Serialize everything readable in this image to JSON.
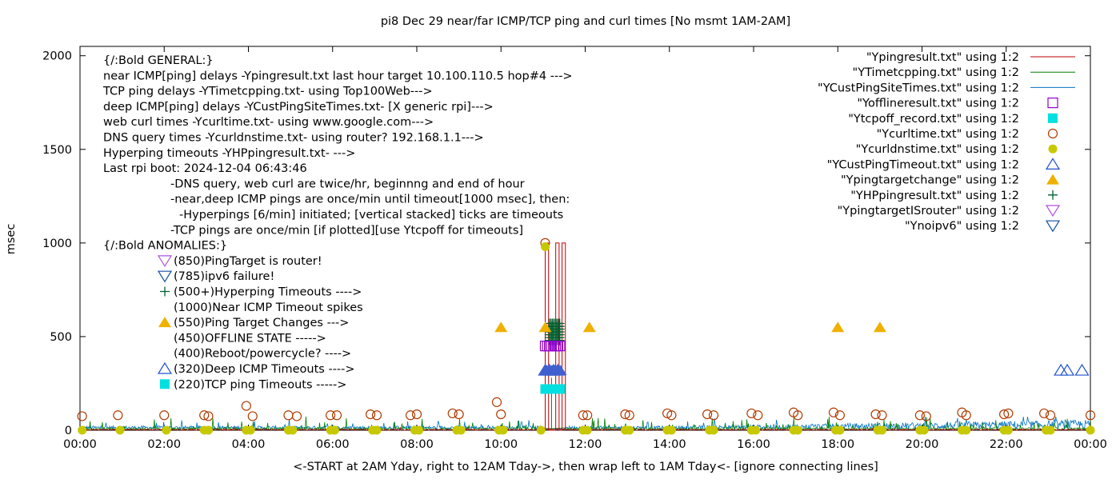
{
  "chart_data": {
    "type": "line",
    "title": "pi8 Dec 29  near/far ICMP/TCP ping and curl times [No msmt 1AM-2AM]",
    "xlabel": "<-START at 2AM Yday, right to 12AM Tday->, then wrap left to 1AM Tday<- [ignore connecting lines]",
    "ylabel": "msec",
    "xlim": [
      0,
      24
    ],
    "ylim": [
      0,
      2050
    ],
    "x_ticks": [
      {
        "v": 0,
        "label": "00:00"
      },
      {
        "v": 2,
        "label": "02:00"
      },
      {
        "v": 4,
        "label": "04:00"
      },
      {
        "v": 6,
        "label": "06:00"
      },
      {
        "v": 8,
        "label": "08:00"
      },
      {
        "v": 10,
        "label": "10:00"
      },
      {
        "v": 12,
        "label": "12:00"
      },
      {
        "v": 14,
        "label": "14:00"
      },
      {
        "v": 16,
        "label": "16:00"
      },
      {
        "v": 18,
        "label": "18:00"
      },
      {
        "v": 20,
        "label": "20:00"
      },
      {
        "v": 22,
        "label": "22:00"
      },
      {
        "v": 24,
        "label": "00:00"
      }
    ],
    "y_ticks": [
      {
        "v": 0,
        "label": "0"
      },
      {
        "v": 500,
        "label": "500"
      },
      {
        "v": 1000,
        "label": "1000"
      },
      {
        "v": 1500,
        "label": "1500"
      },
      {
        "v": 2000,
        "label": "2000"
      }
    ],
    "legend_position": "top-right",
    "legend": [
      {
        "label": "\"Ypingresult.txt\" using 1:2",
        "marker": "line",
        "color": "#c00000"
      },
      {
        "label": "\"YTimetcpping.txt\" using 1:2",
        "marker": "line",
        "color": "#008000"
      },
      {
        "label": "\"YCustPingSiteTimes.txt\" using 1:2",
        "marker": "line",
        "color": "#0070c0"
      },
      {
        "label": "\"Yofflineresult.txt\" using 1:2",
        "marker": "square-open",
        "color": "#9400d3"
      },
      {
        "label": "\"Ytcpoff_record.txt\" using 1:2",
        "marker": "square-filled",
        "color": "#00e0e0"
      },
      {
        "label": "\"Ycurltime.txt\" using 1:2",
        "marker": "circle-open",
        "color": "#b03a00"
      },
      {
        "label": "\"Ycurldnstime.txt\" using 1:2",
        "marker": "circle-filled",
        "color": "#c8c800"
      },
      {
        "label": "\"YCustPingTimeout.txt\" using 1:2",
        "marker": "triangle-up-open",
        "color": "#2050d0"
      },
      {
        "label": "\"Ypingtargetchange\" using 1:2",
        "marker": "triangle-up-filled",
        "color": "#f0b000"
      },
      {
        "label": "\"YHPpingresult.txt\" using 1:2",
        "marker": "plus",
        "color": "#006030"
      },
      {
        "label": "\"YpingtargetISrouter\" using 1:2",
        "marker": "triangle-down-open",
        "color": "#b050e0"
      },
      {
        "label": "\"Ynoipv6\" using 1:2",
        "marker": "triangle-down-open",
        "color": "#1050a0"
      }
    ],
    "notes": [
      {
        "text": "{/:Bold GENERAL:}",
        "indent": 0
      },
      {
        "text": "near ICMP[ping] delays -Ypingresult.txt last hour target 10.100.110.5 hop#4 --->",
        "indent": 0
      },
      {
        "text": "TCP ping delays -YTimetcpping.txt- using Top100Web--->",
        "indent": 0
      },
      {
        "text": "deep ICMP[ping] delays -YCustPingSiteTimes.txt- [X generic rpi]--->",
        "indent": 0
      },
      {
        "text": "web curl times -Ycurltime.txt- using www.google.com--->",
        "indent": 0
      },
      {
        "text": "DNS query times -Ycurldnstime.txt- using router? 192.168.1.1--->",
        "indent": 0
      },
      {
        "text": "Hyperping timeouts -YHPpingresult.txt- --->",
        "indent": 0
      },
      {
        "text": "Last rpi boot: 2024-12-04 06:43:46",
        "indent": 0
      },
      {
        "text": "-DNS query, web curl are twice/hr, beginnng and end of hour",
        "indent": 1
      },
      {
        "text": "-near,deep ICMP pings are once/min until timeout[1000 msec], then:",
        "indent": 1
      },
      {
        "text": "-Hyperpings [6/min] initiated; [vertical stacked] ticks are timeouts",
        "indent": 2
      },
      {
        "text": "-TCP pings are once/min [if plotted][use Ytcpoff for timeouts]",
        "indent": 1
      },
      {
        "text": "{/:Bold ANOMALIES:}",
        "indent": 0
      }
    ],
    "anomalies": [
      {
        "text": "(850)PingTarget is router!",
        "marker": "triangle-down-open",
        "color": "#b050e0"
      },
      {
        "text": "(785)ipv6 failure!",
        "marker": "triangle-down-open",
        "color": "#1050a0"
      },
      {
        "text": "(500+)Hyperping Timeouts ---->",
        "marker": "plus",
        "color": "#006030"
      },
      {
        "text": "(1000)Near ICMP Timeout spikes",
        "marker": "none",
        "color": ""
      },
      {
        "text": "(550)Ping Target Changes --->",
        "marker": "triangle-up-filled",
        "color": "#f0b000"
      },
      {
        "text": "(450)OFFLINE STATE ----->",
        "marker": "none",
        "color": ""
      },
      {
        "text": "(400)Reboot/powercycle? ---->",
        "marker": "none",
        "color": ""
      },
      {
        "text": "(320)Deep ICMP Timeouts ---->",
        "marker": "triangle-up-open",
        "color": "#2050d0"
      },
      {
        "text": "(220)TCP ping Timeouts ----->",
        "marker": "square-filled",
        "color": "#00e0e0"
      }
    ],
    "series": {
      "ping_target_change": {
        "y": 550,
        "x": [
          10.0,
          11.05,
          12.1,
          18.0,
          19.0
        ]
      },
      "cust_ping_timeout": {
        "y": 320,
        "x": [
          11.05,
          11.15,
          11.25,
          11.35,
          23.3,
          23.45,
          23.8
        ]
      },
      "tcpoff_record": {
        "y": 220,
        "x": [
          11.05,
          11.15,
          11.25,
          11.35
        ]
      },
      "offline": {
        "y": 450,
        "x": [
          11.05,
          11.15,
          11.25,
          11.35
        ]
      },
      "hp_timeouts": {
        "x": [
          11.2,
          11.25,
          11.3,
          11.35
        ],
        "y": [
          500,
          520,
          540,
          560
        ]
      },
      "near_icmp_spikes": {
        "x": [
          11.05,
          11.3,
          11.45
        ],
        "y": [
          1000,
          1000,
          1000
        ]
      },
      "curl_time": {
        "x": [
          0.05,
          0.9,
          2.0,
          2.95,
          3.05,
          3.95,
          4.1,
          4.95,
          5.15,
          5.95,
          6.1,
          6.9,
          7.05,
          7.85,
          8.0,
          8.85,
          9.0,
          9.9,
          10.0,
          11.05,
          11.95,
          12.05,
          12.95,
          13.05,
          13.95,
          14.05,
          14.9,
          15.05,
          15.95,
          16.1,
          16.95,
          17.05,
          17.9,
          18.05,
          18.9,
          19.05,
          19.95,
          20.1,
          20.95,
          21.05,
          21.95,
          22.05,
          22.9,
          23.05,
          24.0
        ],
        "y": [
          75,
          80,
          80,
          80,
          75,
          130,
          75,
          80,
          75,
          80,
          80,
          85,
          80,
          80,
          85,
          90,
          85,
          150,
          85,
          1000,
          80,
          80,
          85,
          80,
          90,
          80,
          85,
          80,
          90,
          80,
          95,
          80,
          95,
          80,
          85,
          80,
          80,
          75,
          95,
          80,
          85,
          90,
          90,
          80,
          80
        ]
      },
      "curl_dns_time": {
        "x": [
          0.05,
          0.95,
          2.05,
          2.95,
          3.05,
          3.95,
          4.05,
          4.95,
          5.05,
          5.95,
          6.05,
          6.95,
          7.05,
          7.95,
          8.05,
          8.95,
          9.05,
          9.95,
          10.05,
          10.95,
          11.05,
          11.95,
          12.05,
          12.95,
          13.05,
          13.95,
          14.05,
          14.95,
          15.05,
          15.95,
          16.05,
          16.95,
          17.05,
          17.95,
          18.05,
          18.95,
          19.05,
          19.95,
          20.05,
          20.95,
          21.05,
          21.95,
          22.05,
          22.95,
          23.05,
          24.0
        ],
        "y": [
          0,
          0,
          0,
          0,
          0,
          0,
          0,
          0,
          0,
          0,
          0,
          0,
          0,
          0,
          0,
          0,
          0,
          0,
          0,
          0,
          980,
          0,
          0,
          0,
          0,
          0,
          0,
          0,
          0,
          0,
          0,
          0,
          0,
          0,
          0,
          0,
          0,
          0,
          0,
          0,
          0,
          0,
          0,
          0,
          0,
          0
        ]
      }
    }
  }
}
